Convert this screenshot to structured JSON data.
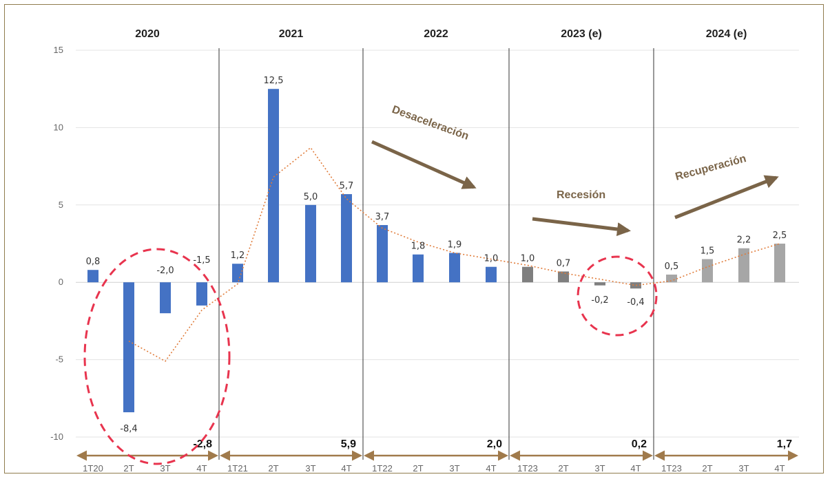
{
  "chart_data": {
    "type": "bar",
    "title": "",
    "xlabel": "",
    "ylabel": "",
    "ylim": [
      -10,
      15
    ],
    "yticks": [
      15,
      10,
      5,
      0,
      -5,
      -10
    ],
    "grid": true,
    "years": [
      {
        "label": "2020",
        "annual": "-2,8",
        "annual_value": -2.8
      },
      {
        "label": "2021",
        "annual": "5,9",
        "annual_value": 5.9
      },
      {
        "label": "2022",
        "annual": "2,0",
        "annual_value": 2.0
      },
      {
        "label": "2023 (e)",
        "annual": "0,2",
        "annual_value": 0.2
      },
      {
        "label": "2024 (e)",
        "annual": "1,7",
        "annual_value": 1.7
      }
    ],
    "categories": [
      "1T20",
      "2T",
      "3T",
      "4T",
      "1T21",
      "2T",
      "3T",
      "4T",
      "1T22",
      "2T",
      "3T",
      "4T",
      "1T23",
      "2T",
      "3T",
      "4T",
      "1T23",
      "2T",
      "3T",
      "4T"
    ],
    "values": [
      0.8,
      -8.4,
      -2.0,
      -1.5,
      1.2,
      12.5,
      5.0,
      5.7,
      3.7,
      1.8,
      1.9,
      1.0,
      1.0,
      0.7,
      -0.2,
      -0.4,
      0.5,
      1.5,
      2.2,
      2.5
    ],
    "value_labels": [
      "0,8",
      "-8,4",
      "-2,0",
      "-1,5",
      "1,2",
      "12,5",
      "5,0",
      "5,7",
      "3,7",
      "1,8",
      "1,9",
      "1,0",
      "1,0",
      "0,7",
      "-0,2",
      "-0,4",
      "0,5",
      "1,5",
      "2,2",
      "2,5"
    ],
    "bar_groups": [
      {
        "period": "2020-2022",
        "color": "#4472c4"
      },
      {
        "period": "2023 (e)",
        "color": "#7f7f7f"
      },
      {
        "period": "2024 (e)",
        "color": "#a6a6a6"
      }
    ],
    "trend_line": {
      "style": "dotted",
      "color": "#e07b39",
      "values": [
        null,
        -3.8,
        -5.1,
        -1.8,
        -0.1,
        6.8,
        8.7,
        5.4,
        3.5,
        2.6,
        1.9,
        1.5,
        1.1,
        0.6,
        0.2,
        -0.2,
        0.1,
        1.0,
        1.8,
        2.5
      ]
    },
    "annotations": [
      {
        "text": "Desaceleración",
        "color": "#7a6448"
      },
      {
        "text": "Recesión",
        "color": "#7a6448"
      },
      {
        "text": "Recuperación",
        "color": "#7a6448"
      }
    ],
    "highlights": [
      {
        "shape": "dashed-ellipse",
        "color": "#e8344e",
        "covers": [
          "2T",
          "3T",
          "4T"
        ]
      },
      {
        "shape": "dashed-circle",
        "color": "#e8344e",
        "covers": [
          "3T",
          "4T"
        ]
      }
    ]
  }
}
